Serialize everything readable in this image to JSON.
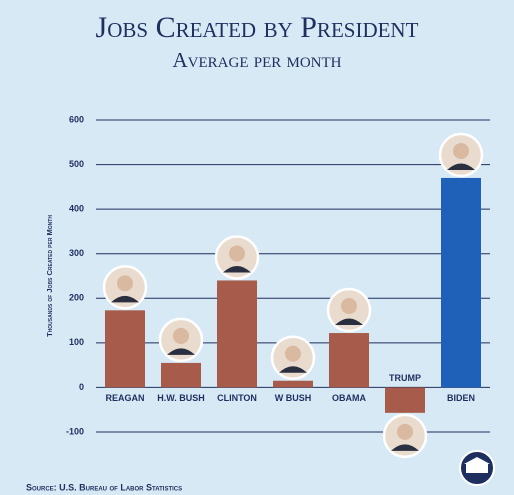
{
  "chart_data": {
    "type": "bar",
    "title": "Jobs Created by President",
    "subtitle": "Average per month",
    "y_label": "Thousands of Jobs Created per Month",
    "source": "Source: U.S. Bureau of Labor Statistics",
    "categories": [
      "REAGAN",
      "H.W. BUSH",
      "CLINTON",
      "W BUSH",
      "OBAMA",
      "TRUMP",
      "BIDEN"
    ],
    "values": [
      173,
      55,
      240,
      15,
      122,
      -57,
      470
    ],
    "colors": [
      "#a65b4b",
      "#a65b4b",
      "#a65b4b",
      "#a65b4b",
      "#a65b4b",
      "#a65b4b",
      "#1f60b8"
    ],
    "ylim": [
      -100,
      600
    ],
    "yticks": [
      -100,
      0,
      100,
      200,
      300,
      400,
      500,
      600
    ],
    "grid": true
  }
}
